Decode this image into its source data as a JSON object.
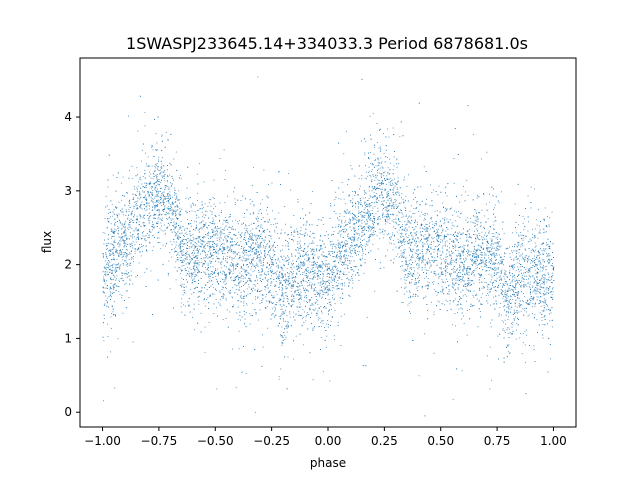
{
  "chart_data": {
    "type": "scatter",
    "title": "1SWASPJ233645.14+334033.3 Period 6878681.0s",
    "xlabel": "phase",
    "ylabel": "flux",
    "xlim": [
      -1.1,
      1.1
    ],
    "ylim": [
      -0.2,
      4.8
    ],
    "xticks": [
      -1.0,
      -0.75,
      -0.5,
      -0.25,
      0.0,
      0.25,
      0.5,
      0.75,
      1.0
    ],
    "xtick_labels": [
      "−1.00",
      "−0.75",
      "−0.50",
      "−0.25",
      "0.00",
      "0.25",
      "0.50",
      "0.75",
      "1.00"
    ],
    "yticks": [
      0,
      1,
      2,
      3,
      4
    ],
    "ytick_labels": [
      "0",
      "1",
      "2",
      "3",
      "4"
    ],
    "grid": false,
    "marker_color": "#1f77b4",
    "series": [
      {
        "phase_range": [
          -1.0,
          1.0
        ],
        "profile_phase": [
          0.0,
          0.05,
          0.1,
          0.15,
          0.2,
          0.25,
          0.3,
          0.35,
          0.4,
          0.45,
          0.5,
          0.55,
          0.6,
          0.65,
          0.7,
          0.75,
          0.8,
          0.85,
          0.9,
          0.95,
          1.0
        ],
        "profile_flux": [
          1.9,
          2.1,
          2.3,
          2.6,
          2.9,
          3.0,
          2.8,
          2.2,
          2.2,
          2.2,
          2.2,
          2.1,
          2.0,
          2.1,
          2.1,
          2.0,
          1.6,
          1.8,
          1.9,
          1.8,
          1.9
        ],
        "scatter_sigma": 0.35
      }
    ]
  }
}
